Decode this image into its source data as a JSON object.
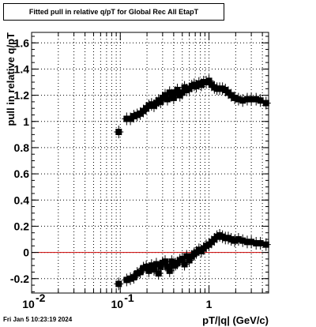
{
  "footer": {
    "timestamp": "Fri Jan  5 10:23:19 2024"
  },
  "colors": {
    "background": "#ffffff",
    "frame": "#000000",
    "grid": "#000000",
    "marker": "#000000",
    "reference_line": "#cc0000"
  },
  "chart_data": {
    "type": "scatter",
    "title": "Fitted pull in relative q/pT for Global Rec All EtapT",
    "xlabel": "pT/|q| (GeV/c)",
    "ylabel": "pull in relative q/pT",
    "xscale": "log",
    "xlim": [
      0.01,
      4.7
    ],
    "ylim": [
      -0.31,
      1.68
    ],
    "grid": true,
    "reference_line_y": 0,
    "x_ticks": [
      {
        "value": 0.01,
        "label": "10",
        "exponent": "-2"
      },
      {
        "value": 0.1,
        "label": "10",
        "exponent": "-1"
      },
      {
        "value": 1,
        "label": "1",
        "exponent": ""
      }
    ],
    "y_ticks": [
      {
        "value": -0.2,
        "label": "-0.2"
      },
      {
        "value": 0,
        "label": "0"
      },
      {
        "value": 0.2,
        "label": "0.2"
      },
      {
        "value": 0.4,
        "label": "0.4"
      },
      {
        "value": 0.6,
        "label": "0.6"
      },
      {
        "value": 0.8,
        "label": "0.8"
      },
      {
        "value": 1,
        "label": "1"
      },
      {
        "value": 1.2,
        "label": "1.2"
      },
      {
        "value": 1.4,
        "label": "1.4"
      },
      {
        "value": 1.6,
        "label": "1.6"
      }
    ],
    "series": [
      {
        "x": [
          0.096,
          0.118,
          0.13,
          0.142,
          0.155,
          0.168,
          0.182,
          0.196,
          0.21,
          0.225,
          0.24,
          0.255,
          0.27,
          0.285,
          0.3,
          0.32,
          0.34,
          0.36,
          0.38,
          0.4,
          0.42,
          0.44,
          0.47,
          0.5,
          0.53,
          0.56,
          0.6,
          0.64,
          0.68,
          0.72,
          0.77,
          0.82,
          0.87,
          0.93,
          1.0,
          1.07,
          1.15,
          1.23,
          1.32,
          1.42,
          1.53,
          1.65,
          1.78,
          1.95,
          2.15,
          2.4,
          2.7,
          3.0,
          3.4,
          3.8,
          4.4
        ],
        "y": [
          0.92,
          1.02,
          1.02,
          1.04,
          1.05,
          1.06,
          1.08,
          1.1,
          1.12,
          1.13,
          1.12,
          1.14,
          1.16,
          1.15,
          1.18,
          1.2,
          1.17,
          1.22,
          1.2,
          1.18,
          1.22,
          1.24,
          1.2,
          1.22,
          1.26,
          1.24,
          1.25,
          1.27,
          1.28,
          1.27,
          1.29,
          1.28,
          1.3,
          1.3,
          1.31,
          1.28,
          1.26,
          1.25,
          1.25,
          1.25,
          1.24,
          1.22,
          1.2,
          1.18,
          1.17,
          1.16,
          1.17,
          1.17,
          1.17,
          1.16,
          1.14
        ]
      },
      {
        "x": [
          0.096,
          0.118,
          0.13,
          0.142,
          0.155,
          0.168,
          0.182,
          0.196,
          0.21,
          0.225,
          0.24,
          0.255,
          0.27,
          0.285,
          0.3,
          0.32,
          0.34,
          0.36,
          0.38,
          0.4,
          0.42,
          0.44,
          0.47,
          0.5,
          0.53,
          0.56,
          0.6,
          0.64,
          0.68,
          0.72,
          0.77,
          0.82,
          0.87,
          0.93,
          1.0,
          1.07,
          1.15,
          1.23,
          1.32,
          1.42,
          1.53,
          1.65,
          1.78,
          1.95,
          2.15,
          2.4,
          2.7,
          3.0,
          3.4,
          3.8,
          4.4
        ],
        "y": [
          -0.24,
          -0.21,
          -0.2,
          -0.19,
          -0.16,
          -0.15,
          -0.12,
          -0.11,
          -0.14,
          -0.1,
          -0.13,
          -0.09,
          -0.16,
          -0.11,
          -0.08,
          -0.07,
          -0.11,
          -0.14,
          -0.07,
          -0.1,
          -0.09,
          -0.08,
          -0.06,
          -0.05,
          -0.09,
          -0.03,
          -0.06,
          -0.03,
          -0.01,
          0.0,
          0.02,
          0.01,
          0.03,
          0.05,
          0.06,
          0.08,
          0.1,
          0.12,
          0.13,
          0.12,
          0.11,
          0.11,
          0.1,
          0.09,
          0.1,
          0.09,
          0.08,
          0.08,
          0.07,
          0.07,
          0.06
        ]
      }
    ]
  }
}
